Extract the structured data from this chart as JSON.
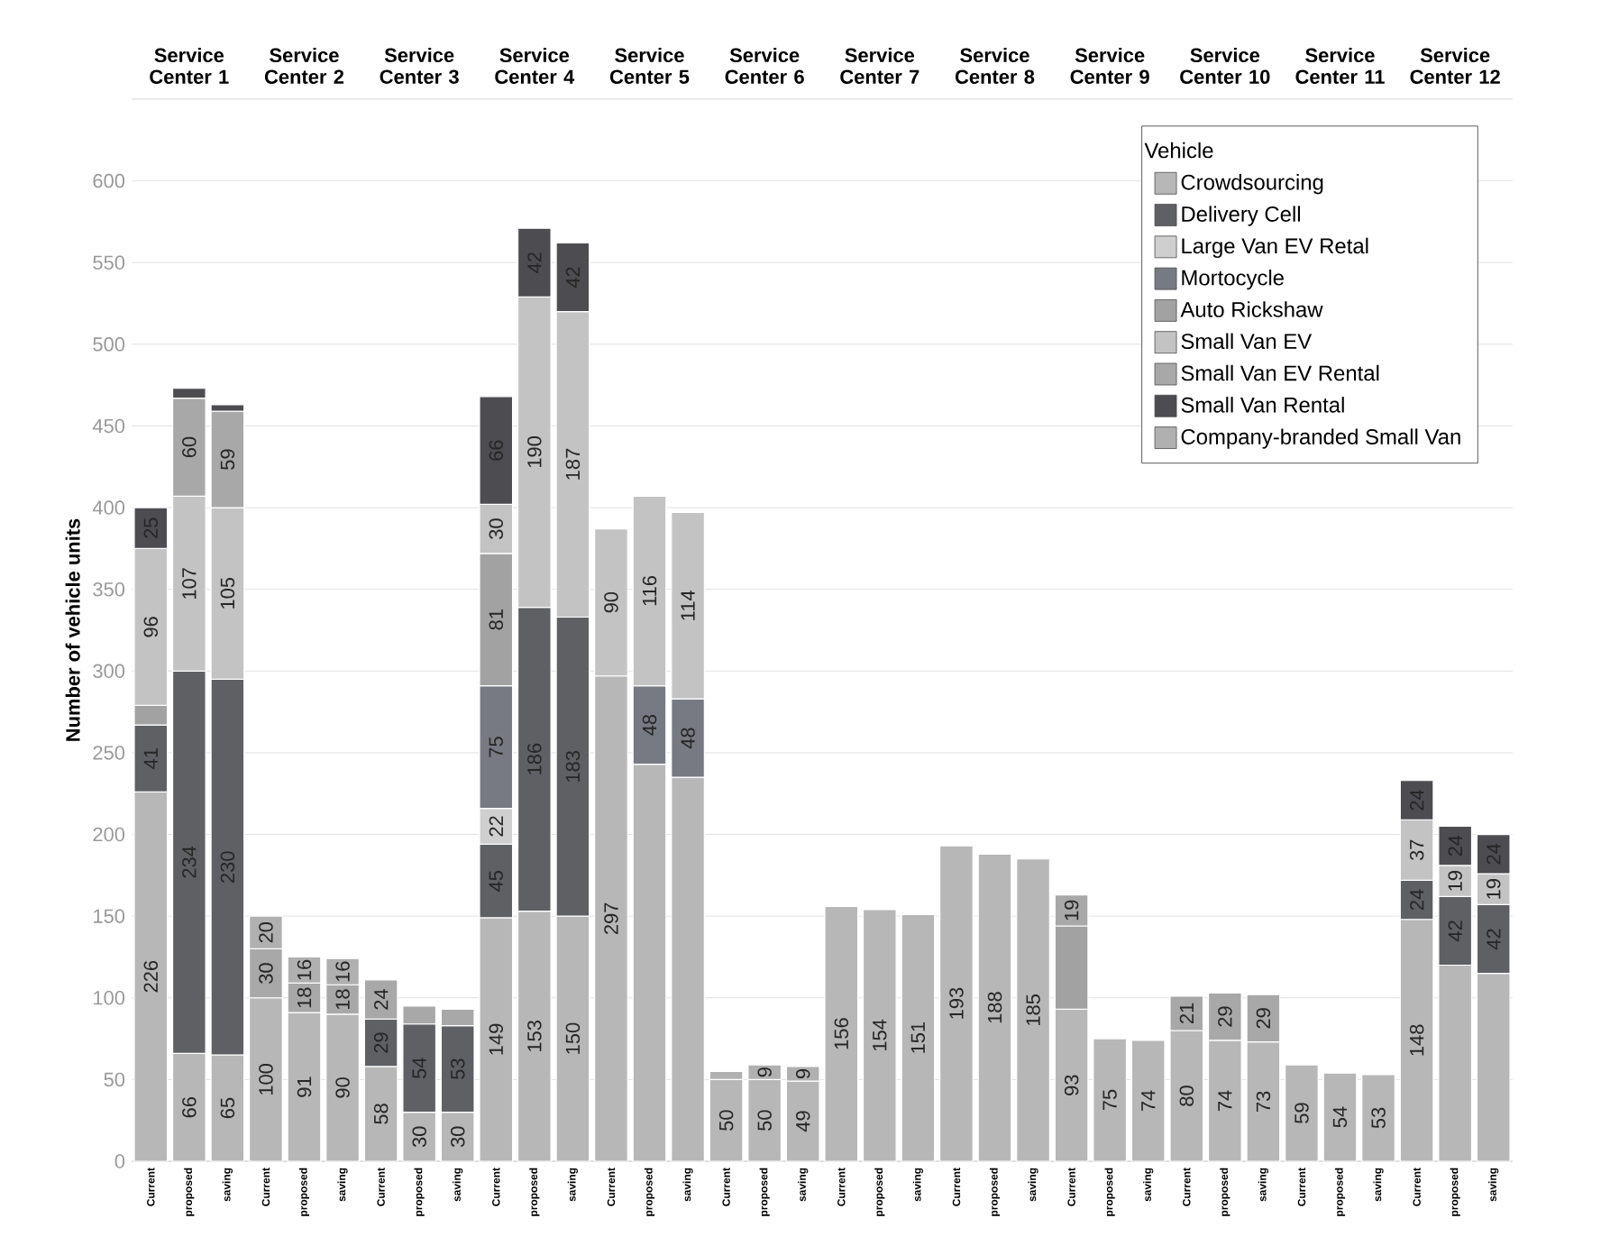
{
  "chart_data": {
    "type": "bar",
    "stacked": true,
    "ylabel": "Number of vehicle units",
    "legend_title": "Vehicle",
    "legend": "top right",
    "grid": "y",
    "ylim": [
      0,
      650
    ],
    "yticks": [
      0,
      50,
      100,
      150,
      200,
      250,
      300,
      350,
      400,
      450,
      500,
      550,
      600
    ],
    "annotations": [
      "Service Center 1",
      "Service Center 2",
      "Service Center 3",
      "Service Center 4",
      "Service Center 5",
      "Service Center 6",
      "Service Center 7",
      "Service Center 8",
      "Service Center 9",
      "Service Center 10",
      "Service Center 11",
      "Service Center 12"
    ],
    "categories": [
      "Current",
      "proposed",
      "saving",
      "Current",
      "proposed",
      "saving",
      "Current",
      "proposed",
      "saving",
      "Current",
      "proposed",
      "saving",
      "Current",
      "proposed",
      "saving",
      "Current",
      "proposed",
      "saving",
      "Current",
      "proposed",
      "saving",
      "Current",
      "proposed",
      "saving",
      "Current",
      "proposed",
      "saving",
      "Current",
      "proposed",
      "saving",
      "Current",
      "proposed",
      "saving",
      "Current",
      "proposed",
      "saving"
    ],
    "series": [
      {
        "name": "Crowdsourcing",
        "color": "#b7b7b7",
        "values": [
          226,
          66,
          65,
          100,
          91,
          90,
          58,
          30,
          30,
          149,
          153,
          150,
          297,
          243,
          235,
          50,
          50,
          49,
          156,
          154,
          151,
          193,
          188,
          185,
          93,
          75,
          74,
          80,
          74,
          73,
          59,
          54,
          53,
          148,
          120,
          115
        ],
        "value_labels": [
          "226",
          "66",
          "65",
          "100",
          "91",
          "90",
          "58",
          "30",
          "30",
          "149",
          "153",
          "150",
          "297",
          null,
          null,
          "50",
          "50",
          "49",
          "156",
          "154",
          "151",
          "193",
          "188",
          "185",
          "93",
          "75",
          "74",
          "80",
          "74",
          "73",
          "59",
          "54",
          "53",
          "148",
          null,
          null
        ]
      },
      {
        "name": "Delivery Cell",
        "color": "#5f6064",
        "values": [
          41,
          234,
          230,
          null,
          null,
          null,
          29,
          54,
          53,
          45,
          186,
          183,
          null,
          null,
          null,
          null,
          null,
          null,
          null,
          null,
          null,
          null,
          null,
          null,
          null,
          null,
          null,
          null,
          null,
          null,
          null,
          null,
          null,
          24,
          42,
          42
        ],
        "value_labels": [
          "41",
          "234",
          "230",
          null,
          null,
          null,
          "29",
          "54",
          "53",
          "45",
          "186",
          "183",
          null,
          null,
          null,
          null,
          null,
          null,
          null,
          null,
          null,
          null,
          null,
          null,
          null,
          null,
          null,
          null,
          null,
          null,
          null,
          null,
          null,
          "24",
          "42",
          "42"
        ]
      },
      {
        "name": "Large Van EV Retal",
        "color": "#cfcfcf",
        "values": [
          null,
          null,
          null,
          null,
          null,
          null,
          null,
          null,
          null,
          22,
          null,
          null,
          null,
          null,
          null,
          null,
          null,
          null,
          null,
          null,
          null,
          null,
          null,
          null,
          null,
          null,
          null,
          null,
          null,
          null,
          null,
          null,
          null,
          null,
          null,
          null
        ],
        "value_labels": [
          null,
          null,
          null,
          null,
          null,
          null,
          null,
          null,
          null,
          "22",
          null,
          null,
          null,
          null,
          null,
          null,
          null,
          null,
          null,
          null,
          null,
          null,
          null,
          null,
          null,
          null,
          null,
          null,
          null,
          null,
          null,
          null,
          null,
          null,
          null,
          null
        ]
      },
      {
        "name": "Mortocycle",
        "color": "#777a82",
        "values": [
          null,
          null,
          null,
          null,
          null,
          null,
          null,
          null,
          null,
          75,
          null,
          null,
          null,
          48,
          48,
          null,
          null,
          null,
          null,
          null,
          null,
          null,
          null,
          null,
          null,
          null,
          null,
          null,
          null,
          null,
          null,
          null,
          null,
          null,
          null,
          null
        ],
        "value_labels": [
          null,
          null,
          null,
          null,
          null,
          null,
          null,
          null,
          null,
          "75",
          null,
          null,
          null,
          "48",
          "48",
          null,
          null,
          null,
          null,
          null,
          null,
          null,
          null,
          null,
          null,
          null,
          null,
          null,
          null,
          null,
          null,
          null,
          null,
          null,
          null,
          null
        ]
      },
      {
        "name": "Auto Rickshaw",
        "color": "#a2a2a2",
        "values": [
          12,
          null,
          null,
          null,
          null,
          null,
          null,
          null,
          null,
          81,
          null,
          null,
          null,
          null,
          null,
          null,
          null,
          null,
          null,
          null,
          null,
          null,
          null,
          null,
          51,
          null,
          null,
          null,
          null,
          null,
          null,
          null,
          null,
          null,
          null,
          null
        ],
        "value_labels": [
          null,
          null,
          null,
          null,
          null,
          null,
          null,
          null,
          null,
          "81",
          null,
          null,
          null,
          null,
          null,
          null,
          null,
          null,
          null,
          null,
          null,
          null,
          null,
          null,
          null,
          null,
          null,
          null,
          null,
          null,
          null,
          null,
          null,
          null,
          null,
          null
        ]
      },
      {
        "name": "Small Van EV",
        "color": "#c3c3c3",
        "values": [
          96,
          107,
          105,
          null,
          null,
          null,
          null,
          null,
          null,
          30,
          190,
          187,
          90,
          116,
          114,
          null,
          null,
          null,
          null,
          null,
          null,
          null,
          null,
          null,
          null,
          null,
          null,
          null,
          null,
          null,
          null,
          null,
          null,
          37,
          19,
          19
        ],
        "value_labels": [
          "96",
          "107",
          "105",
          null,
          null,
          null,
          null,
          null,
          null,
          "30",
          "190",
          "187",
          "90",
          "116",
          "114",
          null,
          null,
          null,
          null,
          null,
          null,
          null,
          null,
          null,
          null,
          null,
          null,
          null,
          null,
          null,
          null,
          null,
          null,
          "37",
          "19",
          "19"
        ]
      },
      {
        "name": "Small Van EV Rental",
        "color": "#a8a8a8",
        "values": [
          null,
          60,
          59,
          30,
          18,
          18,
          24,
          11,
          10,
          null,
          null,
          null,
          null,
          null,
          null,
          null,
          null,
          null,
          null,
          null,
          null,
          null,
          null,
          null,
          19,
          null,
          null,
          21,
          29,
          29,
          null,
          null,
          null,
          null,
          null,
          null
        ],
        "value_labels": [
          null,
          "60",
          "59",
          "30",
          "18",
          "18",
          "24",
          null,
          null,
          null,
          null,
          null,
          null,
          null,
          null,
          null,
          null,
          null,
          null,
          null,
          null,
          null,
          null,
          null,
          "19",
          null,
          null,
          "21",
          "29",
          "29",
          null,
          null,
          null,
          null,
          null,
          null
        ]
      },
      {
        "name": "Small Van Rental",
        "color": "#4d4d51",
        "values": [
          25,
          6,
          4,
          null,
          null,
          null,
          null,
          null,
          null,
          66,
          42,
          42,
          null,
          null,
          null,
          null,
          null,
          null,
          null,
          null,
          null,
          null,
          null,
          null,
          null,
          null,
          null,
          null,
          null,
          null,
          null,
          null,
          null,
          24,
          24,
          24
        ],
        "value_labels": [
          "25",
          null,
          null,
          null,
          null,
          null,
          null,
          null,
          null,
          "66",
          "42",
          "42",
          null,
          null,
          null,
          null,
          null,
          null,
          null,
          null,
          null,
          null,
          null,
          null,
          null,
          null,
          null,
          null,
          null,
          null,
          null,
          null,
          null,
          "24",
          "24",
          "24"
        ]
      },
      {
        "name": "Company-branded Small Van",
        "color": "#b0b0b0",
        "values": [
          null,
          null,
          null,
          20,
          16,
          16,
          null,
          null,
          null,
          null,
          null,
          null,
          null,
          null,
          null,
          5,
          9,
          9,
          null,
          null,
          null,
          null,
          null,
          null,
          null,
          null,
          null,
          null,
          null,
          null,
          null,
          null,
          null,
          null,
          null,
          null
        ],
        "value_labels": [
          null,
          null,
          null,
          "20",
          "16",
          "16",
          null,
          null,
          null,
          null,
          null,
          null,
          null,
          null,
          null,
          null,
          "9",
          "9",
          null,
          null,
          null,
          null,
          null,
          null,
          null,
          null,
          null,
          null,
          null,
          null,
          null,
          null,
          null,
          null,
          null,
          null
        ]
      }
    ]
  }
}
